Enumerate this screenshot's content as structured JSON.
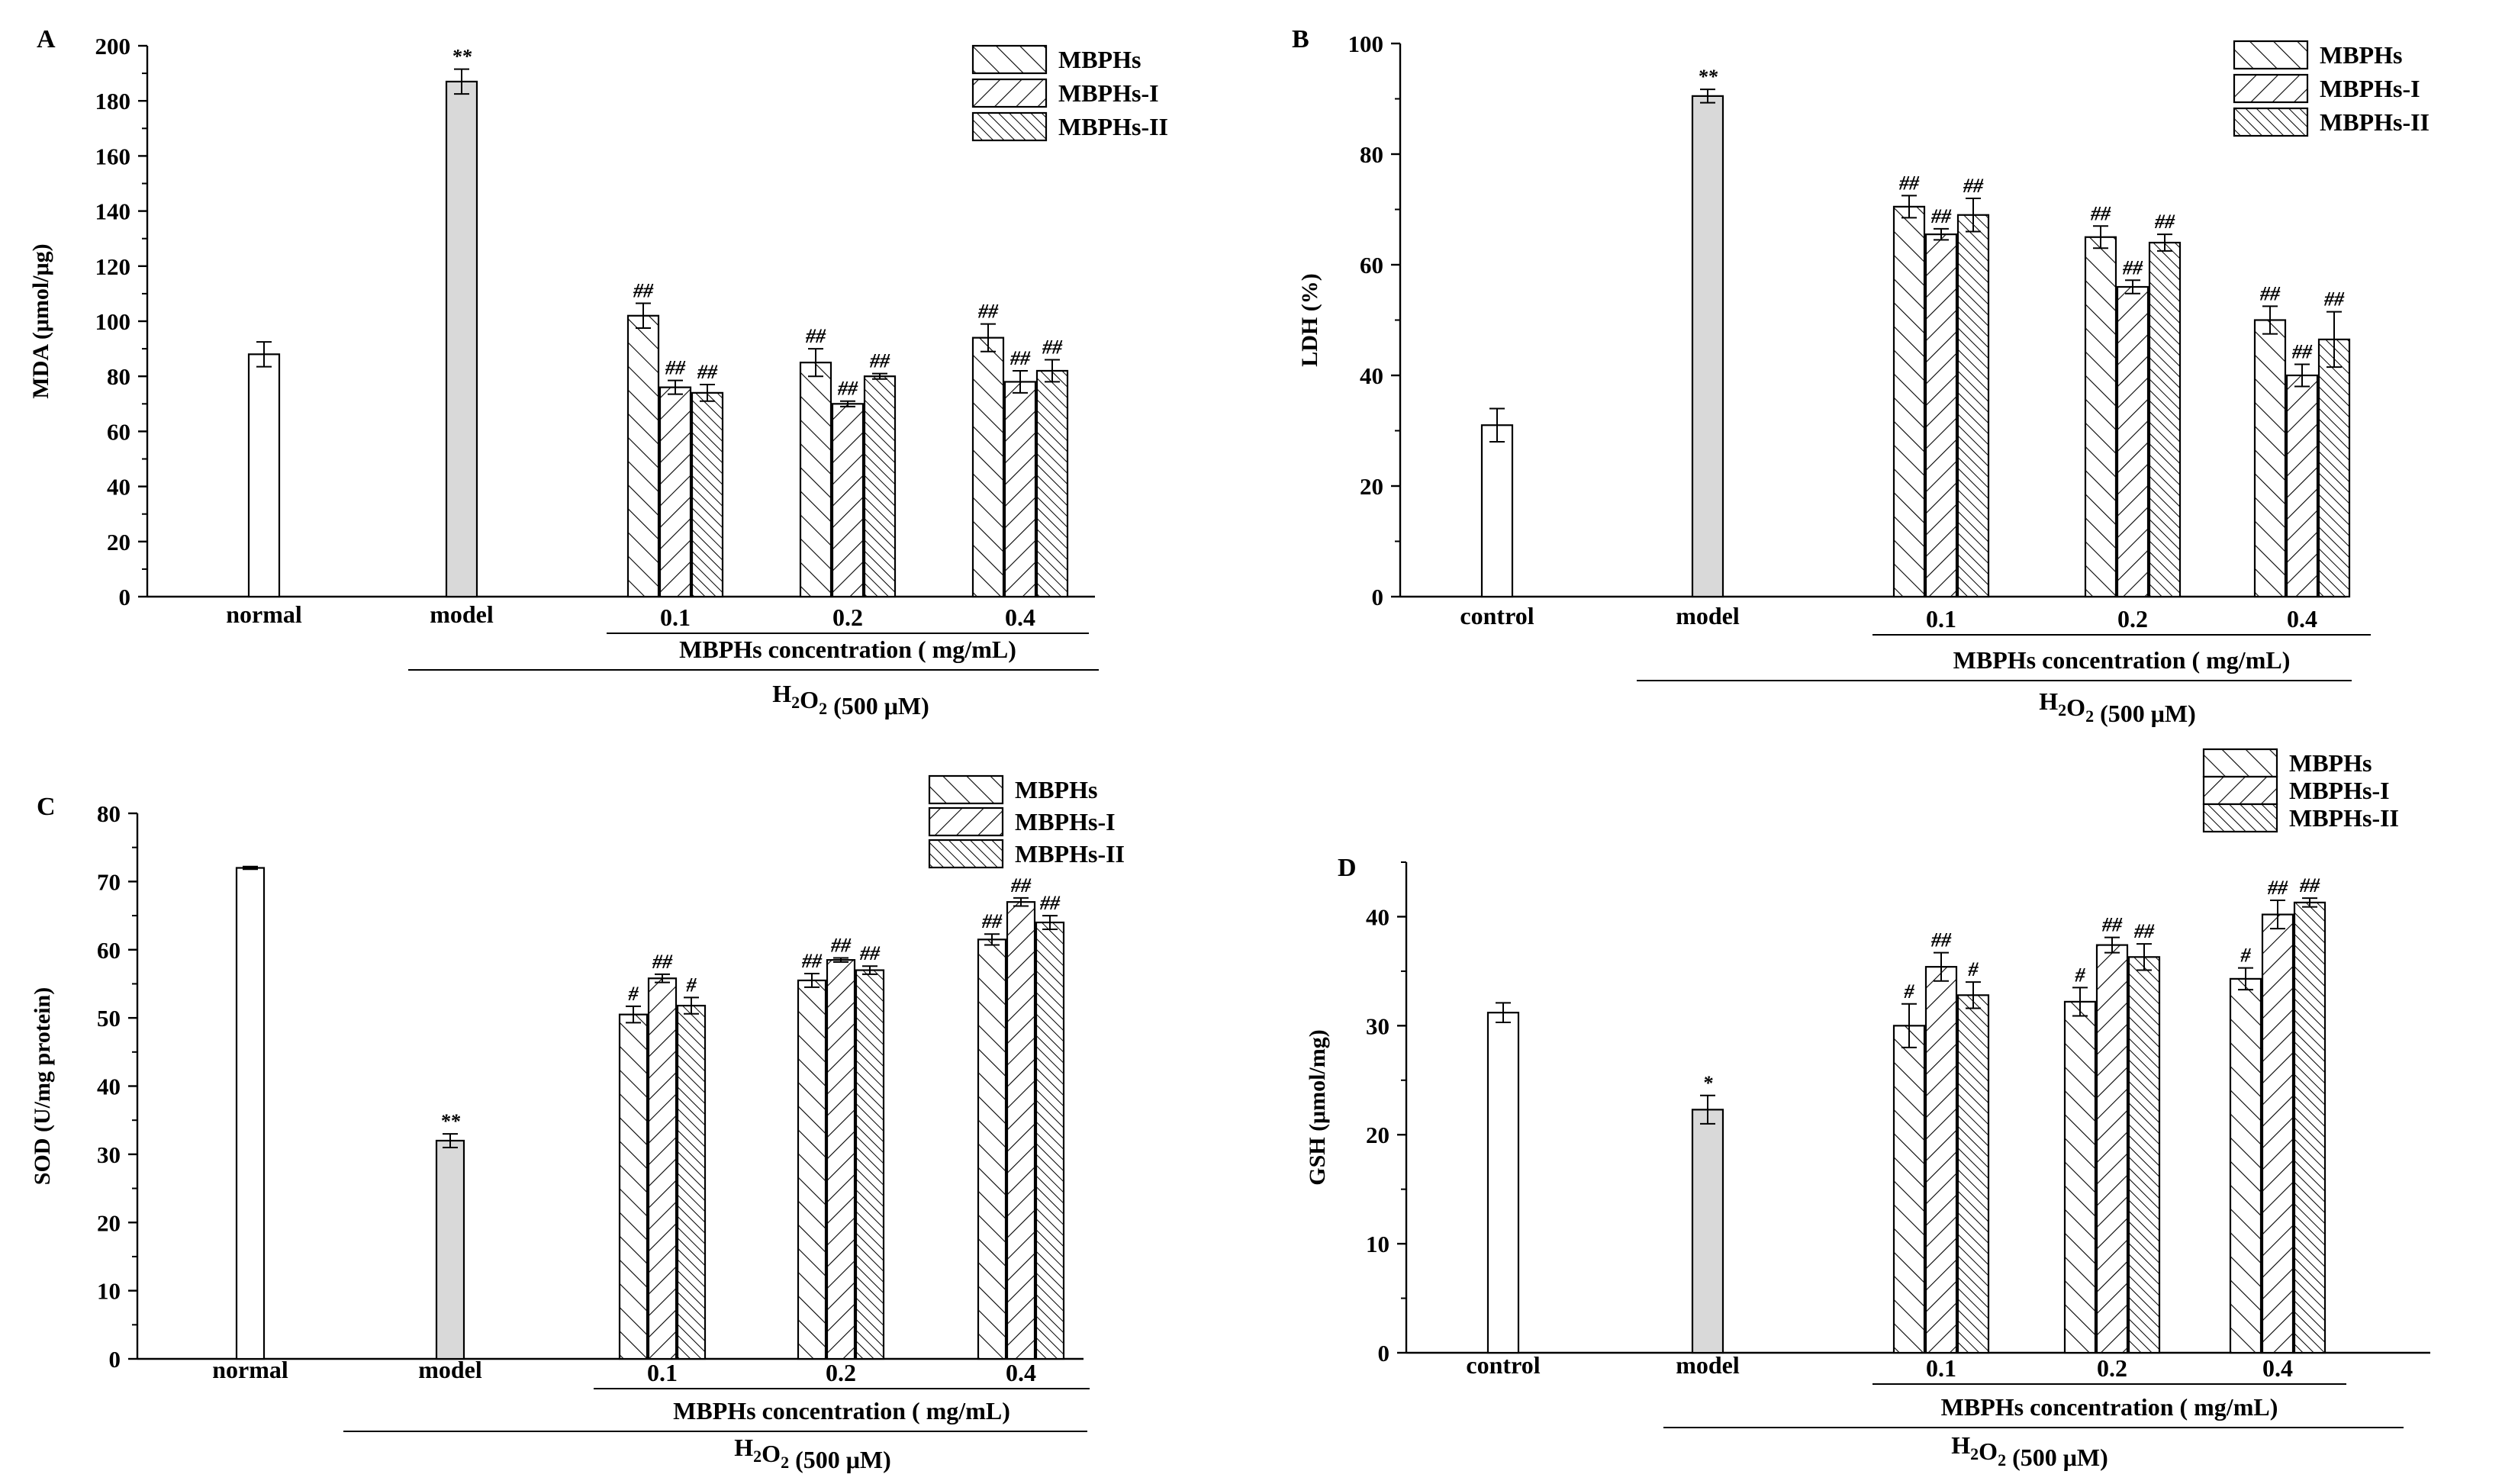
{
  "colors": {
    "ink": "#000000",
    "model_fill": "#d9d9d9",
    "white": "#ffffff"
  },
  "chart_data": [
    {
      "panel": "A",
      "type": "bar",
      "ylabel": "MDA (μmol/μg)",
      "ylim": [
        0,
        200
      ],
      "ystep": 20,
      "legend": [
        "MBPHs",
        "MBPHs-I",
        "MBPHs-II"
      ],
      "controls": [
        {
          "label": "normal",
          "value": 88,
          "err": 4.5,
          "sig": ""
        },
        {
          "label": "model",
          "value": 187,
          "err": 4.5,
          "sig": "**"
        }
      ],
      "categories": [
        "0.1",
        "0.2",
        "0.4"
      ],
      "series": [
        {
          "name": "MBPHs",
          "values": [
            102,
            85,
            94
          ],
          "errs": [
            4.5,
            5,
            5
          ],
          "sig": [
            "##",
            "##",
            "##"
          ]
        },
        {
          "name": "MBPHs-I",
          "values": [
            76,
            70,
            78
          ],
          "errs": [
            2.5,
            1,
            4
          ],
          "sig": [
            "##",
            "##",
            "##"
          ]
        },
        {
          "name": "MBPHs-II",
          "values": [
            74,
            80,
            82
          ],
          "errs": [
            3,
            1,
            4
          ],
          "sig": [
            "##",
            "##",
            "##"
          ]
        }
      ],
      "group_label": "MBPHs concentration ( mg/mL)",
      "treatment": {
        "prefix": "H",
        "sub1": "2",
        "mid": "O",
        "sub2": "2",
        "suffix": " (500 μM)"
      }
    },
    {
      "panel": "B",
      "type": "bar",
      "ylabel": "LDH (%)",
      "ylim": [
        0,
        100
      ],
      "ystep": 20,
      "legend": [
        "MBPHs",
        "MBPHs-I",
        "MBPHs-II"
      ],
      "controls": [
        {
          "label": "control",
          "value": 31,
          "err": 3,
          "sig": ""
        },
        {
          "label": "model",
          "value": 90.5,
          "err": 1.2,
          "sig": "**"
        }
      ],
      "categories": [
        "0.1",
        "0.2",
        "0.4"
      ],
      "series": [
        {
          "name": "MBPHs",
          "values": [
            70.5,
            65,
            50
          ],
          "errs": [
            2,
            2,
            2.5
          ],
          "sig": [
            "##",
            "##",
            "##"
          ]
        },
        {
          "name": "MBPHs-I",
          "values": [
            65.5,
            56,
            40
          ],
          "errs": [
            1,
            1.2,
            2
          ],
          "sig": [
            "##",
            "##",
            "##"
          ]
        },
        {
          "name": "MBPHs-II",
          "values": [
            69,
            64,
            46.5
          ],
          "errs": [
            3,
            1.5,
            5
          ],
          "sig": [
            "##",
            "##",
            "##"
          ]
        }
      ],
      "group_label": "MBPHs concentration ( mg/mL)",
      "treatment": {
        "prefix": "H",
        "sub1": "2",
        "mid": "O",
        "sub2": "2",
        "suffix": " (500 μM)"
      }
    },
    {
      "panel": "C",
      "type": "bar",
      "ylabel": "SOD (U/mg protein)",
      "ylim": [
        0,
        80
      ],
      "ystep": 10,
      "legend": [
        "MBPHs",
        "MBPHs-I",
        "MBPHs-II"
      ],
      "controls": [
        {
          "label": "normal",
          "value": 72,
          "err": 0.2,
          "sig": ""
        },
        {
          "label": "model",
          "value": 32,
          "err": 1,
          "sig": "**"
        }
      ],
      "categories": [
        "0.1",
        "0.2",
        "0.4"
      ],
      "series": [
        {
          "name": "MBPHs",
          "values": [
            50.5,
            55.5,
            61.5
          ],
          "errs": [
            1.2,
            1,
            0.8
          ],
          "sig": [
            "#",
            "##",
            "##"
          ]
        },
        {
          "name": "MBPHs-I",
          "values": [
            55.8,
            58.5,
            67
          ],
          "errs": [
            0.6,
            0.3,
            0.6
          ],
          "sig": [
            "##",
            "##",
            "##"
          ]
        },
        {
          "name": "MBPHs-II",
          "values": [
            51.8,
            57,
            64
          ],
          "errs": [
            1.2,
            0.6,
            1
          ],
          "sig": [
            "#",
            "##",
            "##"
          ]
        }
      ],
      "group_label": "MBPHs concentration ( mg/mL)",
      "treatment": {
        "prefix": "H",
        "sub1": "2",
        "mid": "O",
        "sub2": "2",
        "suffix": " (500 μM)"
      }
    },
    {
      "panel": "D",
      "type": "bar",
      "ylabel": "GSH (μmol/mg)",
      "ylim": [
        0,
        45
      ],
      "ystep": 10,
      "legend": [
        "MBPHs",
        "MBPHs-I",
        "MBPHs-II"
      ],
      "controls": [
        {
          "label": "control",
          "value": 31.2,
          "err": 0.9,
          "sig": ""
        },
        {
          "label": "model",
          "value": 22.3,
          "err": 1.3,
          "sig": "*"
        }
      ],
      "categories": [
        "0.1",
        "0.2",
        "0.4"
      ],
      "series": [
        {
          "name": "MBPHs",
          "values": [
            30,
            32.2,
            34.3
          ],
          "errs": [
            2,
            1.3,
            1
          ],
          "sig": [
            "#",
            "#",
            "#"
          ]
        },
        {
          "name": "MBPHs-I",
          "values": [
            35.4,
            37.4,
            40.2
          ],
          "errs": [
            1.3,
            0.7,
            1.3
          ],
          "sig": [
            "##",
            "##",
            "##"
          ]
        },
        {
          "name": "MBPHs-II",
          "values": [
            32.8,
            36.3,
            41.3
          ],
          "errs": [
            1.2,
            1.2,
            0.4
          ],
          "sig": [
            "#",
            "##",
            "##"
          ]
        }
      ],
      "group_label": "MBPHs concentration ( mg/mL)",
      "treatment": {
        "prefix": "H",
        "sub1": "2",
        "mid": "O",
        "sub2": "2",
        "suffix": " (500 μM)"
      }
    }
  ]
}
